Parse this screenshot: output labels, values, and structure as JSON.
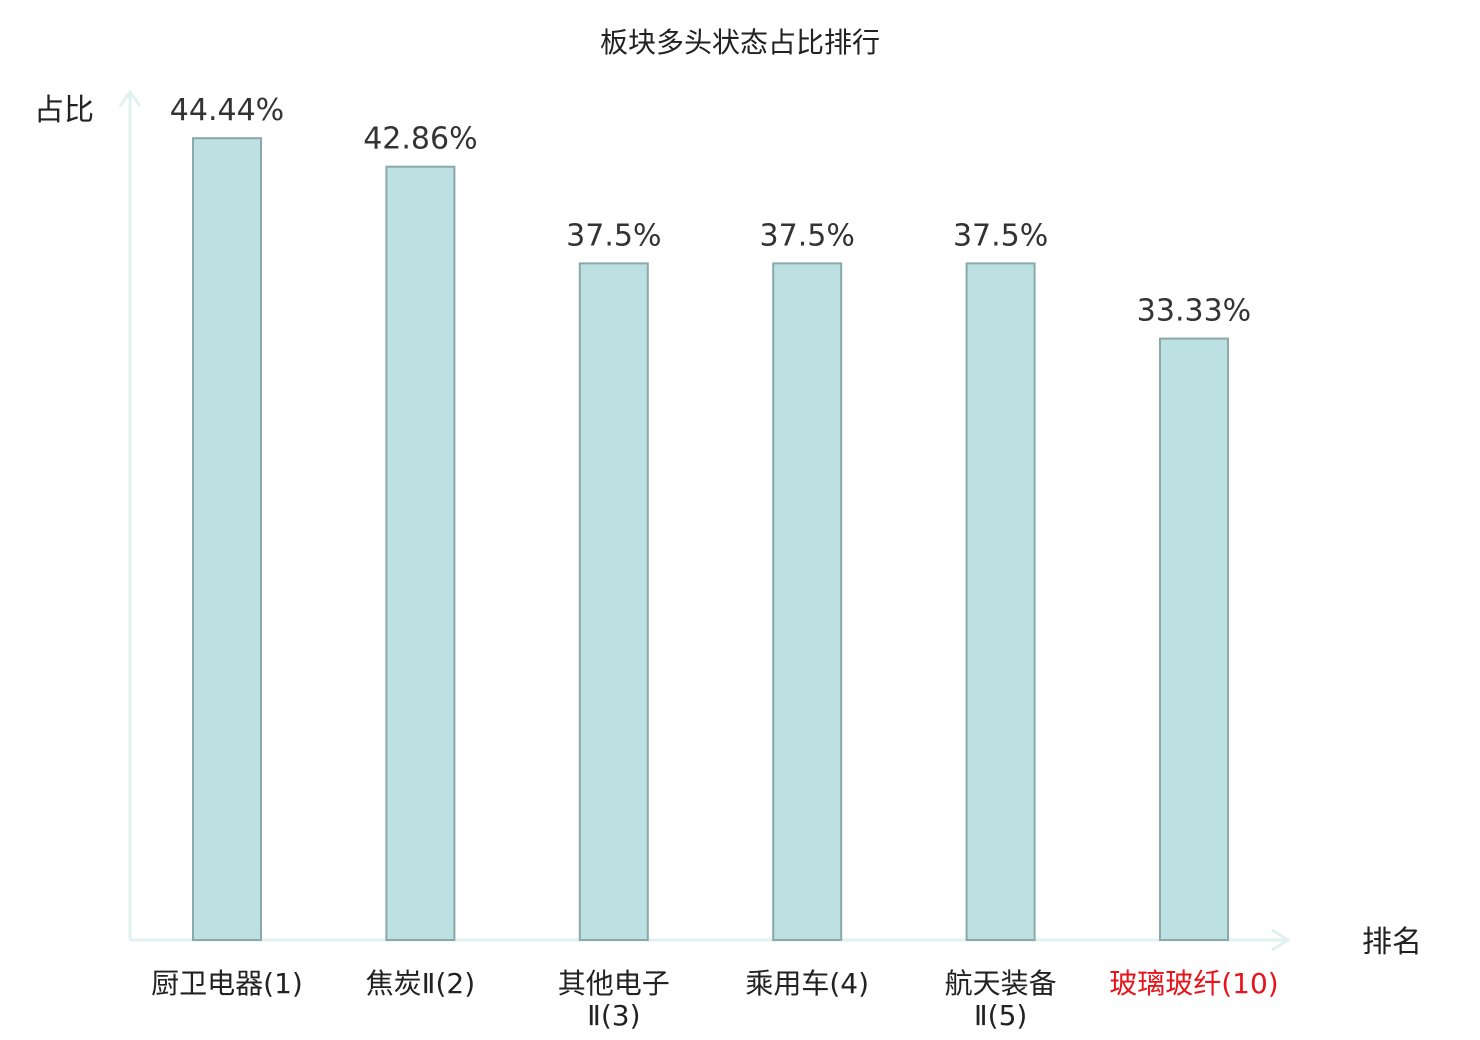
{
  "chart_data": {
    "type": "bar",
    "title": "板块多头状态占比排行",
    "xlabel": "排名",
    "ylabel": "占比",
    "ylim": [
      0,
      47
    ],
    "grid": false,
    "categories": [
      [
        "厨卫电器(1)"
      ],
      [
        "焦炭Ⅱ(2)"
      ],
      [
        "其他电子",
        "Ⅱ(3)"
      ],
      [
        "乘用车(4)"
      ],
      [
        "航天装备",
        "Ⅱ(5)"
      ],
      [
        "玻璃玻纤(10)"
      ]
    ],
    "values": [
      44.44,
      42.86,
      37.5,
      37.5,
      37.5,
      33.33
    ],
    "value_labels": [
      "44.44%",
      "42.86%",
      "37.5%",
      "37.5%",
      "37.5%",
      "33.33%"
    ],
    "category_colors": [
      "#222222",
      "#222222",
      "#222222",
      "#222222",
      "#222222",
      "#e8141b"
    ],
    "colors": {
      "bar_fill": "#bde0e3",
      "bar_stroke": "#8aa9a9",
      "axis": "#e0f2ef"
    }
  }
}
